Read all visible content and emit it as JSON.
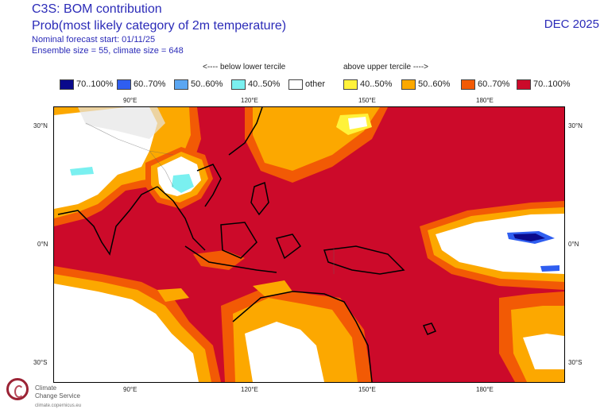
{
  "header": {
    "title": "C3S: BOM contribution",
    "subtitle": "Prob(most likely category of 2m temperature)",
    "forecast_start": "Nominal forecast start: 01/11/25",
    "ensemble": "Ensemble size = 55, climate size = 648",
    "period": "DEC 2025"
  },
  "tercile_labels": {
    "below": "<---- below lower tercile",
    "above": "above upper tercile ---->"
  },
  "legend": [
    {
      "label": "70..100%",
      "color": "#0a0a8c"
    },
    {
      "label": "60..70%",
      "color": "#2f5ef0"
    },
    {
      "label": "50..60%",
      "color": "#5aa6f2"
    },
    {
      "label": "40..50%",
      "color": "#7af0f0"
    },
    {
      "label": "other",
      "color": "#ffffff"
    },
    {
      "label": "40..50%",
      "color": "#fff23a"
    },
    {
      "label": "50..60%",
      "color": "#fca800"
    },
    {
      "label": "60..70%",
      "color": "#f25a05"
    },
    {
      "label": "70..100%",
      "color": "#cc0a2a"
    }
  ],
  "axes": {
    "top_lon": [
      "90°E",
      "120°E",
      "150°E",
      "180°E"
    ],
    "bottom_lon": [
      "90°E",
      "120°E",
      "150°E",
      "180°E"
    ],
    "left_lat": [
      "30°N",
      "0°N",
      "30°S"
    ],
    "right_lat": [
      "30°N",
      "0°N",
      "30°S"
    ]
  },
  "map": {
    "lon_range": [
      70,
      200
    ],
    "lat_range": [
      -35,
      35
    ],
    "projection": "equirectangular",
    "dominant_category": "above upper tercile 70..100%"
  },
  "logo": {
    "line1": "Climate",
    "line2": "Change Service",
    "url": "climate.copernicus.eu"
  }
}
